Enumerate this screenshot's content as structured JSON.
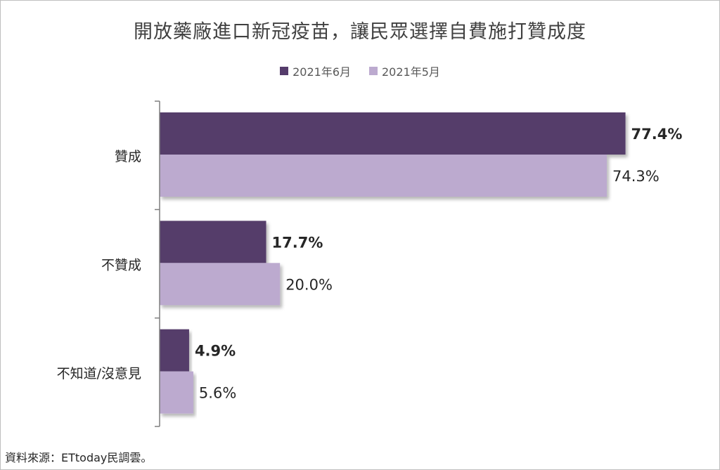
{
  "chart_data": {
    "type": "bar",
    "orientation": "horizontal",
    "title": "開放藥廠進口新冠疫苗，讓民眾選擇自費施打贊成度",
    "categories": [
      "贊成",
      "不贊成",
      "不知道/沒意見"
    ],
    "series": [
      {
        "name": "2021年6月",
        "color": "#553c6b",
        "values": [
          77.4,
          17.7,
          4.9
        ],
        "labels": [
          "77.4%",
          "17.7%",
          "4.9%"
        ]
      },
      {
        "name": "2021年5月",
        "color": "#bcaacf",
        "values": [
          74.3,
          20.0,
          5.6
        ],
        "labels": [
          "74.3%",
          "20.0%",
          "5.6%"
        ]
      }
    ],
    "xlim": [
      0,
      100
    ],
    "grid": false,
    "legend_position": "top-center",
    "unit": "%"
  },
  "source_note": "資料來源：ETtoday民調雲。"
}
